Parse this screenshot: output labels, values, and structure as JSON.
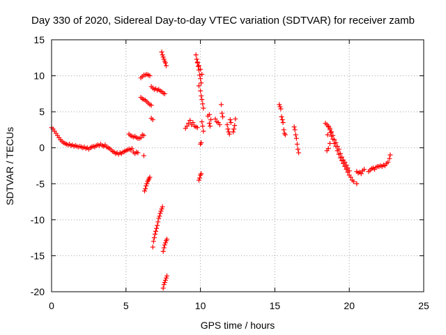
{
  "chart_data": {
    "type": "scatter",
    "title": "Day 330 of 2020, Sidereal Day-to-day VTEC variation (SDTVAR) for receiver zamb",
    "xlabel": "GPS time / hours",
    "ylabel": "SDTVAR / TECUs",
    "xlim": [
      0,
      25
    ],
    "ylim": [
      -20,
      15
    ],
    "xticks": [
      "0",
      "5",
      "10",
      "15",
      "20",
      "25"
    ],
    "yticks": [
      "15",
      "10",
      "5",
      "0",
      "-5",
      "-10",
      "-15",
      "-20"
    ],
    "grid": true,
    "marker": "+",
    "color": "#ff0000",
    "series": [
      {
        "name": "SDTVAR",
        "points": [
          [
            0.0,
            2.8
          ],
          [
            0.1,
            2.6
          ],
          [
            0.2,
            2.3
          ],
          [
            0.3,
            2.0
          ],
          [
            0.4,
            1.7
          ],
          [
            0.5,
            1.4
          ],
          [
            0.6,
            1.1
          ],
          [
            0.7,
            0.9
          ],
          [
            0.8,
            0.7
          ],
          [
            0.9,
            0.6
          ],
          [
            1.0,
            0.5
          ],
          [
            1.1,
            0.4
          ],
          [
            1.2,
            0.5
          ],
          [
            1.3,
            0.3
          ],
          [
            1.4,
            0.4
          ],
          [
            1.5,
            0.2
          ],
          [
            1.6,
            0.3
          ],
          [
            1.7,
            0.2
          ],
          [
            1.8,
            0.1
          ],
          [
            1.9,
            0.2
          ],
          [
            2.0,
            0.1
          ],
          [
            2.1,
            0.0
          ],
          [
            2.2,
            0.1
          ],
          [
            2.3,
            -0.1
          ],
          [
            2.4,
            0.0
          ],
          [
            2.5,
            -0.2
          ],
          [
            2.6,
            0.0
          ],
          [
            2.7,
            0.1
          ],
          [
            2.8,
            0.2
          ],
          [
            2.9,
            0.1
          ],
          [
            3.0,
            0.3
          ],
          [
            3.1,
            0.4
          ],
          [
            3.2,
            0.3
          ],
          [
            3.3,
            0.5
          ],
          [
            3.4,
            0.3
          ],
          [
            3.5,
            0.2
          ],
          [
            3.6,
            0.4
          ],
          [
            3.7,
            0.1
          ],
          [
            3.8,
            0.0
          ],
          [
            3.9,
            -0.1
          ],
          [
            4.0,
            -0.3
          ],
          [
            4.1,
            -0.5
          ],
          [
            4.2,
            -0.6
          ],
          [
            4.3,
            -0.8
          ],
          [
            4.4,
            -0.7
          ],
          [
            4.5,
            -0.9
          ],
          [
            4.6,
            -0.7
          ],
          [
            4.7,
            -0.8
          ],
          [
            4.8,
            -0.6
          ],
          [
            4.9,
            -0.5
          ],
          [
            5.0,
            -0.4
          ],
          [
            5.1,
            -0.3
          ],
          [
            5.2,
            -0.2
          ],
          [
            5.3,
            -0.3
          ],
          [
            5.4,
            -0.1
          ],
          [
            5.5,
            -0.6
          ],
          [
            5.6,
            -0.8
          ],
          [
            5.7,
            -0.6
          ],
          [
            5.8,
            -0.7
          ],
          [
            6.2,
            -1.1
          ],
          [
            5.2,
            1.9
          ],
          [
            5.3,
            1.7
          ],
          [
            5.4,
            1.6
          ],
          [
            5.5,
            1.5
          ],
          [
            5.6,
            1.6
          ],
          [
            5.7,
            1.4
          ],
          [
            5.8,
            1.3
          ],
          [
            5.9,
            1.3
          ],
          [
            6.0,
            1.4
          ],
          [
            6.1,
            1.8
          ],
          [
            6.2,
            1.7
          ],
          [
            6.0,
            7.0
          ],
          [
            6.1,
            6.8
          ],
          [
            6.2,
            6.7
          ],
          [
            6.3,
            6.6
          ],
          [
            6.4,
            6.4
          ],
          [
            6.5,
            6.2
          ],
          [
            6.6,
            6.0
          ],
          [
            6.7,
            5.9
          ],
          [
            6.0,
            9.7
          ],
          [
            6.1,
            9.9
          ],
          [
            6.2,
            10.1
          ],
          [
            6.3,
            10.1
          ],
          [
            6.4,
            10.2
          ],
          [
            6.5,
            10.1
          ],
          [
            6.6,
            10.0
          ],
          [
            6.7,
            8.5
          ],
          [
            6.8,
            8.3
          ],
          [
            6.9,
            8.1
          ],
          [
            7.0,
            8.2
          ],
          [
            7.1,
            8.0
          ],
          [
            7.2,
            8.1
          ],
          [
            7.3,
            7.9
          ],
          [
            7.4,
            7.8
          ],
          [
            7.5,
            7.6
          ],
          [
            7.6,
            7.5
          ],
          [
            6.7,
            4.1
          ],
          [
            6.8,
            3.9
          ],
          [
            7.4,
            13.3
          ],
          [
            7.45,
            12.9
          ],
          [
            7.5,
            12.6
          ],
          [
            7.55,
            12.3
          ],
          [
            7.6,
            12.0
          ],
          [
            7.65,
            11.8
          ],
          [
            7.7,
            11.4
          ],
          [
            6.25,
            -6.0
          ],
          [
            6.3,
            -5.7
          ],
          [
            6.35,
            -5.3
          ],
          [
            6.4,
            -5.0
          ],
          [
            6.45,
            -4.7
          ],
          [
            6.5,
            -4.5
          ],
          [
            6.55,
            -4.3
          ],
          [
            6.6,
            -4.1
          ],
          [
            6.8,
            -13.8
          ],
          [
            6.85,
            -13.0
          ],
          [
            6.9,
            -12.5
          ],
          [
            6.95,
            -12.0
          ],
          [
            7.0,
            -11.6
          ],
          [
            7.05,
            -11.2
          ],
          [
            7.1,
            -10.8
          ],
          [
            7.15,
            -10.3
          ],
          [
            7.2,
            -9.8
          ],
          [
            7.25,
            -9.5
          ],
          [
            7.3,
            -9.1
          ],
          [
            7.35,
            -8.8
          ],
          [
            7.4,
            -8.5
          ],
          [
            7.45,
            -8.2
          ],
          [
            7.5,
            -14.4
          ],
          [
            7.55,
            -13.9
          ],
          [
            7.6,
            -13.5
          ],
          [
            7.65,
            -13.2
          ],
          [
            7.7,
            -12.9
          ],
          [
            7.75,
            -12.7
          ],
          [
            7.5,
            -19.5
          ],
          [
            7.55,
            -19.0
          ],
          [
            7.6,
            -18.7
          ],
          [
            7.65,
            -18.4
          ],
          [
            7.7,
            -18.1
          ],
          [
            7.75,
            -17.8
          ],
          [
            9.0,
            2.7
          ],
          [
            9.1,
            3.0
          ],
          [
            9.2,
            3.4
          ],
          [
            9.3,
            3.8
          ],
          [
            9.4,
            3.2
          ],
          [
            9.5,
            3.5
          ],
          [
            9.6,
            3.0
          ],
          [
            9.7,
            2.9
          ],
          [
            9.8,
            2.8
          ],
          [
            9.7,
            12.9
          ],
          [
            9.75,
            12.3
          ],
          [
            9.8,
            11.8
          ],
          [
            9.85,
            11.3
          ],
          [
            9.9,
            10.8
          ],
          [
            9.95,
            10.1
          ],
          [
            10.0,
            9.6
          ],
          [
            10.05,
            9.0
          ],
          [
            9.8,
            11.9
          ],
          [
            9.9,
            11.4
          ],
          [
            10.0,
            10.9
          ],
          [
            10.1,
            10.2
          ],
          [
            9.9,
            8.6
          ],
          [
            10.0,
            7.9
          ],
          [
            10.05,
            7.2
          ],
          [
            10.1,
            6.7
          ],
          [
            10.15,
            6.1
          ],
          [
            10.2,
            5.5
          ],
          [
            10.1,
            3.6
          ],
          [
            10.15,
            3.0
          ],
          [
            10.2,
            2.3
          ],
          [
            10.0,
            0.5
          ],
          [
            10.05,
            0.7
          ],
          [
            9.9,
            -4.5
          ],
          [
            9.95,
            -4.2
          ],
          [
            10.0,
            -3.8
          ],
          [
            10.05,
            -3.6
          ],
          [
            10.5,
            4.4
          ],
          [
            10.6,
            4.6
          ],
          [
            10.7,
            3.9
          ],
          [
            10.6,
            3.4
          ],
          [
            10.65,
            3.0
          ],
          [
            11.0,
            4.0
          ],
          [
            11.1,
            3.6
          ],
          [
            11.2,
            3.5
          ],
          [
            11.3,
            3.2
          ],
          [
            11.4,
            6.0
          ],
          [
            11.45,
            4.8
          ],
          [
            11.5,
            4.3
          ],
          [
            11.8,
            3.2
          ],
          [
            11.85,
            2.6
          ],
          [
            11.9,
            2.2
          ],
          [
            11.95,
            1.9
          ],
          [
            12.0,
            3.9
          ],
          [
            12.05,
            3.5
          ],
          [
            12.2,
            2.2
          ],
          [
            12.25,
            2.6
          ],
          [
            12.3,
            3.1
          ],
          [
            12.35,
            4.0
          ],
          [
            15.3,
            6.0
          ],
          [
            15.35,
            5.7
          ],
          [
            15.4,
            5.4
          ],
          [
            15.45,
            4.3
          ],
          [
            15.5,
            3.9
          ],
          [
            15.55,
            3.5
          ],
          [
            15.6,
            2.5
          ],
          [
            15.65,
            2.0
          ],
          [
            15.7,
            1.8
          ],
          [
            16.3,
            2.9
          ],
          [
            16.35,
            2.5
          ],
          [
            16.4,
            1.8
          ],
          [
            16.45,
            1.3
          ],
          [
            16.5,
            0.5
          ],
          [
            16.55,
            -0.2
          ],
          [
            16.6,
            -0.7
          ],
          [
            18.4,
            3.4
          ],
          [
            18.5,
            3.2
          ],
          [
            18.6,
            2.9
          ],
          [
            18.7,
            2.5
          ],
          [
            18.75,
            2.1
          ],
          [
            18.8,
            1.6
          ],
          [
            18.9,
            1.2
          ],
          [
            19.0,
            0.6
          ],
          [
            19.1,
            0.2
          ],
          [
            19.2,
            -0.4
          ],
          [
            19.3,
            -0.9
          ],
          [
            19.4,
            -1.4
          ],
          [
            19.5,
            -1.8
          ],
          [
            19.6,
            -2.2
          ],
          [
            19.7,
            -2.6
          ],
          [
            19.8,
            -3.0
          ],
          [
            19.9,
            -3.4
          ],
          [
            20.0,
            -3.8
          ],
          [
            20.1,
            -4.1
          ],
          [
            20.2,
            -4.5
          ],
          [
            20.3,
            -4.7
          ],
          [
            18.6,
            3.0
          ],
          [
            18.7,
            2.7
          ],
          [
            18.8,
            2.2
          ],
          [
            18.9,
            1.7
          ],
          [
            19.0,
            1.1
          ],
          [
            19.1,
            0.7
          ],
          [
            19.2,
            0.2
          ],
          [
            19.3,
            -0.2
          ],
          [
            19.4,
            -0.8
          ],
          [
            19.5,
            -1.3
          ],
          [
            19.6,
            -1.7
          ],
          [
            19.7,
            -2.0
          ],
          [
            19.8,
            -2.4
          ],
          [
            19.9,
            -2.8
          ],
          [
            20.0,
            -3.2
          ],
          [
            18.5,
            -0.4
          ],
          [
            18.6,
            -0.1
          ],
          [
            18.7,
            0.6
          ],
          [
            18.55,
            1.8
          ],
          [
            20.5,
            -3.3
          ],
          [
            20.6,
            -3.5
          ],
          [
            20.7,
            -3.4
          ],
          [
            20.8,
            -3.6
          ],
          [
            20.9,
            -3.2
          ],
          [
            21.0,
            -3.0
          ],
          [
            20.5,
            -5.0
          ],
          [
            21.3,
            -3.3
          ],
          [
            21.4,
            -3.1
          ],
          [
            21.5,
            -2.9
          ],
          [
            21.6,
            -2.8
          ],
          [
            21.7,
            -3.0
          ],
          [
            21.8,
            -2.7
          ],
          [
            21.9,
            -2.6
          ],
          [
            22.0,
            -2.6
          ],
          [
            22.1,
            -2.5
          ],
          [
            22.2,
            -2.6
          ],
          [
            22.3,
            -2.4
          ],
          [
            22.4,
            -2.5
          ],
          [
            22.5,
            -2.2
          ],
          [
            22.6,
            -2.0
          ],
          [
            22.7,
            -1.5
          ],
          [
            22.75,
            -1.0
          ]
        ]
      }
    ]
  }
}
